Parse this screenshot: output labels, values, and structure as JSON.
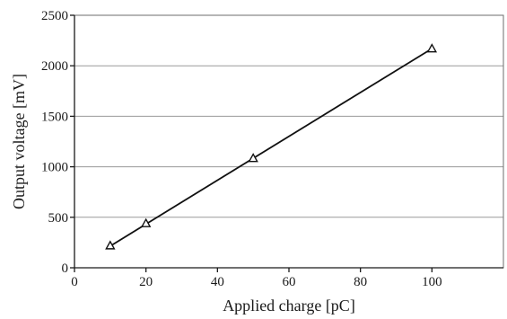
{
  "chart_data": {
    "type": "scatter",
    "title": "",
    "xlabel": "Applied charge [pC]",
    "ylabel": "Output voltage [mV]",
    "xlim": [
      0,
      120
    ],
    "ylim": [
      0,
      2500
    ],
    "xticks": [
      0,
      20,
      40,
      60,
      80,
      100
    ],
    "yticks": [
      0,
      500,
      1000,
      1500,
      2000,
      2500
    ],
    "grid": "horizontal",
    "marker": "triangle",
    "series": [
      {
        "x": [
          10,
          20,
          50,
          100
        ],
        "y": [
          220,
          440,
          1085,
          2170
        ]
      }
    ],
    "fit_line": {
      "x": [
        10,
        100
      ],
      "y": [
        215,
        2170
      ]
    },
    "colors": {
      "line": "#111111",
      "grid": "#9a9a9a"
    }
  }
}
